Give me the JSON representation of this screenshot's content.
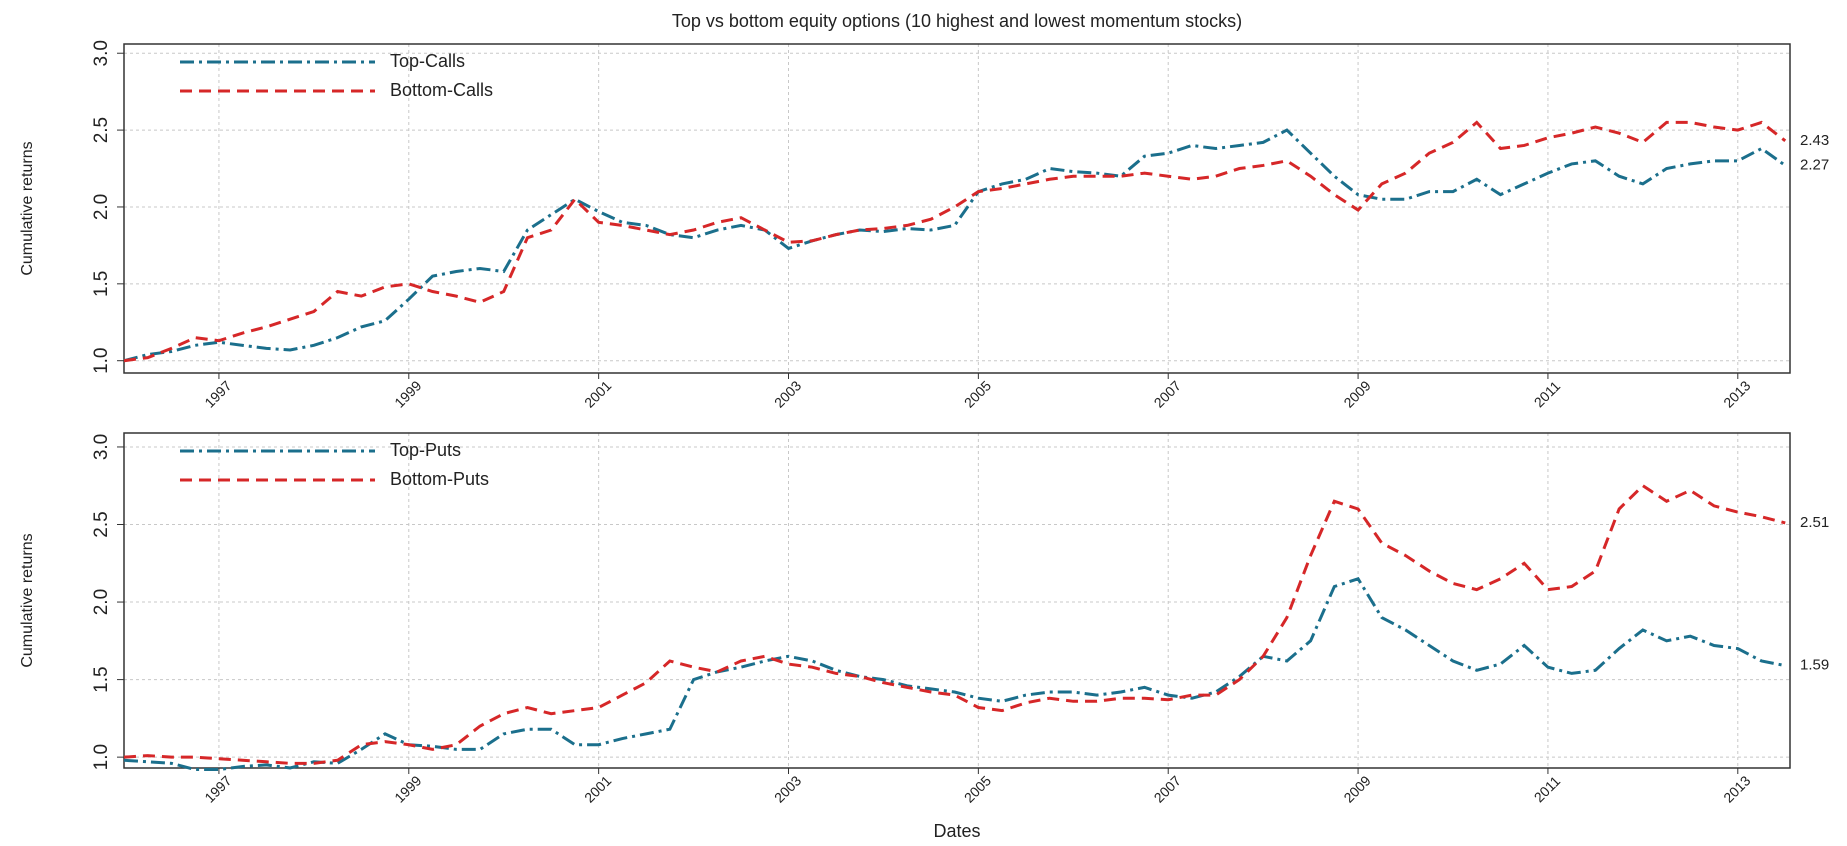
{
  "chart_data": [
    {
      "type": "line",
      "title": "Top vs bottom equity options (10 highest and lowest momentum stocks)",
      "ylabel": "Cumulative returns",
      "x": [
        1996,
        1996.25,
        1996.5,
        1996.75,
        1997,
        1997.25,
        1997.5,
        1997.75,
        1998,
        1998.25,
        1998.5,
        1998.75,
        1999,
        1999.25,
        1999.5,
        1999.75,
        2000,
        2000.25,
        2000.5,
        2000.75,
        2001,
        2001.25,
        2001.5,
        2001.75,
        2002,
        2002.25,
        2002.5,
        2002.75,
        2003,
        2003.25,
        2003.5,
        2003.75,
        2004,
        2004.25,
        2004.5,
        2004.75,
        2005,
        2005.25,
        2005.5,
        2005.75,
        2006,
        2006.25,
        2006.5,
        2006.75,
        2007,
        2007.25,
        2007.5,
        2007.75,
        2008,
        2008.25,
        2008.5,
        2008.75,
        2009,
        2009.25,
        2009.5,
        2009.75,
        2010,
        2010.25,
        2010.5,
        2010.75,
        2011,
        2011.25,
        2011.5,
        2011.75,
        2012,
        2012.25,
        2012.5,
        2012.75,
        2013,
        2013.25,
        2013.5
      ],
      "series": [
        {
          "name": "Top-Calls",
          "color": "#1b6f8c",
          "dash": "dashdot",
          "values": [
            1.0,
            1.04,
            1.06,
            1.1,
            1.12,
            1.1,
            1.08,
            1.07,
            1.1,
            1.15,
            1.22,
            1.26,
            1.4,
            1.55,
            1.58,
            1.6,
            1.58,
            1.85,
            1.95,
            2.05,
            1.97,
            1.9,
            1.88,
            1.82,
            1.8,
            1.85,
            1.88,
            1.85,
            1.73,
            1.78,
            1.82,
            1.85,
            1.84,
            1.86,
            1.85,
            1.88,
            2.1,
            2.15,
            2.18,
            2.25,
            2.23,
            2.22,
            2.2,
            2.33,
            2.35,
            2.4,
            2.38,
            2.4,
            2.42,
            2.5,
            2.35,
            2.2,
            2.08,
            2.05,
            2.05,
            2.1,
            2.1,
            2.18,
            2.08,
            2.15,
            2.22,
            2.28,
            2.3,
            2.2,
            2.15,
            2.25,
            2.28,
            2.3,
            2.3,
            2.38,
            2.27
          ]
        },
        {
          "name": "Bottom-Calls",
          "color": "#d62728",
          "dash": "dashed",
          "values": [
            1.0,
            1.02,
            1.08,
            1.15,
            1.13,
            1.18,
            1.22,
            1.27,
            1.32,
            1.45,
            1.42,
            1.48,
            1.5,
            1.45,
            1.42,
            1.38,
            1.45,
            1.8,
            1.85,
            2.05,
            1.9,
            1.88,
            1.85,
            1.82,
            1.85,
            1.9,
            1.93,
            1.85,
            1.77,
            1.78,
            1.82,
            1.85,
            1.86,
            1.88,
            1.92,
            2.0,
            2.1,
            2.12,
            2.15,
            2.18,
            2.2,
            2.2,
            2.2,
            2.22,
            2.2,
            2.18,
            2.2,
            2.25,
            2.27,
            2.3,
            2.2,
            2.08,
            1.98,
            2.15,
            2.22,
            2.35,
            2.42,
            2.55,
            2.38,
            2.4,
            2.45,
            2.48,
            2.52,
            2.48,
            2.42,
            2.55,
            2.55,
            2.52,
            2.5,
            2.55,
            2.43
          ]
        }
      ],
      "xlim": [
        1996,
        2013.55
      ],
      "xticks": [
        1997,
        1999,
        2001,
        2003,
        2005,
        2007,
        2009,
        2011,
        2013
      ],
      "ylim": [
        0.92,
        3.06
      ],
      "yticks": [
        {
          "value": 1,
          "label": "1.0"
        },
        1.5,
        {
          "value": 2,
          "label": "2.0"
        },
        2.5,
        {
          "value": 3,
          "label": "3.0"
        }
      ],
      "grid": true,
      "legend": "upper left"
    },
    {
      "type": "line",
      "ylabel": "Cumulative returns",
      "xlabel": "Dates",
      "x": [
        1996,
        1996.25,
        1996.5,
        1996.75,
        1997,
        1997.25,
        1997.5,
        1997.75,
        1998,
        1998.25,
        1998.5,
        1998.75,
        1999,
        1999.25,
        1999.5,
        1999.75,
        2000,
        2000.25,
        2000.5,
        2000.75,
        2001,
        2001.25,
        2001.5,
        2001.75,
        2002,
        2002.25,
        2002.5,
        2002.75,
        2003,
        2003.25,
        2003.5,
        2003.75,
        2004,
        2004.25,
        2004.5,
        2004.75,
        2005,
        2005.25,
        2005.5,
        2005.75,
        2006,
        2006.25,
        2006.5,
        2006.75,
        2007,
        2007.25,
        2007.5,
        2007.75,
        2008,
        2008.25,
        2008.5,
        2008.75,
        2009,
        2009.25,
        2009.5,
        2009.75,
        2010,
        2010.25,
        2010.5,
        2010.75,
        2011,
        2011.25,
        2011.5,
        2011.75,
        2012,
        2012.25,
        2012.5,
        2012.75,
        2013,
        2013.25,
        2013.5
      ],
      "series": [
        {
          "name": "Top-Puts",
          "color": "#1b6f8c",
          "dash": "dashdot",
          "values": [
            0.98,
            0.97,
            0.96,
            0.92,
            0.92,
            0.94,
            0.95,
            0.93,
            0.97,
            0.96,
            1.05,
            1.15,
            1.08,
            1.07,
            1.05,
            1.05,
            1.15,
            1.18,
            1.18,
            1.08,
            1.08,
            1.12,
            1.15,
            1.18,
            1.5,
            1.55,
            1.58,
            1.62,
            1.65,
            1.62,
            1.56,
            1.52,
            1.5,
            1.46,
            1.44,
            1.42,
            1.38,
            1.36,
            1.4,
            1.42,
            1.42,
            1.4,
            1.42,
            1.45,
            1.4,
            1.38,
            1.42,
            1.52,
            1.65,
            1.62,
            1.75,
            2.1,
            2.15,
            1.9,
            1.82,
            1.72,
            1.62,
            1.56,
            1.6,
            1.72,
            1.58,
            1.54,
            1.56,
            1.7,
            1.82,
            1.75,
            1.78,
            1.72,
            1.7,
            1.62,
            1.59
          ]
        },
        {
          "name": "Bottom-Puts",
          "color": "#d62728",
          "dash": "dashed",
          "values": [
            1.0,
            1.01,
            1.0,
            1.0,
            0.99,
            0.98,
            0.97,
            0.96,
            0.96,
            0.98,
            1.08,
            1.1,
            1.08,
            1.05,
            1.08,
            1.2,
            1.28,
            1.32,
            1.28,
            1.3,
            1.32,
            1.4,
            1.48,
            1.62,
            1.58,
            1.55,
            1.62,
            1.65,
            1.6,
            1.58,
            1.54,
            1.52,
            1.48,
            1.45,
            1.42,
            1.4,
            1.32,
            1.3,
            1.35,
            1.38,
            1.36,
            1.36,
            1.38,
            1.38,
            1.37,
            1.4,
            1.4,
            1.5,
            1.65,
            1.9,
            2.3,
            2.65,
            2.6,
            2.38,
            2.3,
            2.2,
            2.12,
            2.08,
            2.15,
            2.25,
            2.08,
            2.1,
            2.2,
            2.6,
            2.75,
            2.65,
            2.72,
            2.62,
            2.58,
            2.55,
            2.51
          ]
        }
      ],
      "xlim": [
        1996,
        2013.55
      ],
      "xticks": [
        1997,
        1999,
        2001,
        2003,
        2005,
        2007,
        2009,
        2011,
        2013
      ],
      "ylim": [
        0.93,
        3.09
      ],
      "yticks": [
        {
          "value": 1,
          "label": "1.0"
        },
        1.5,
        {
          "value": 2,
          "label": "2.0"
        },
        2.5,
        {
          "value": 3,
          "label": "3.0"
        }
      ],
      "grid": true,
      "legend": "upper left"
    }
  ]
}
